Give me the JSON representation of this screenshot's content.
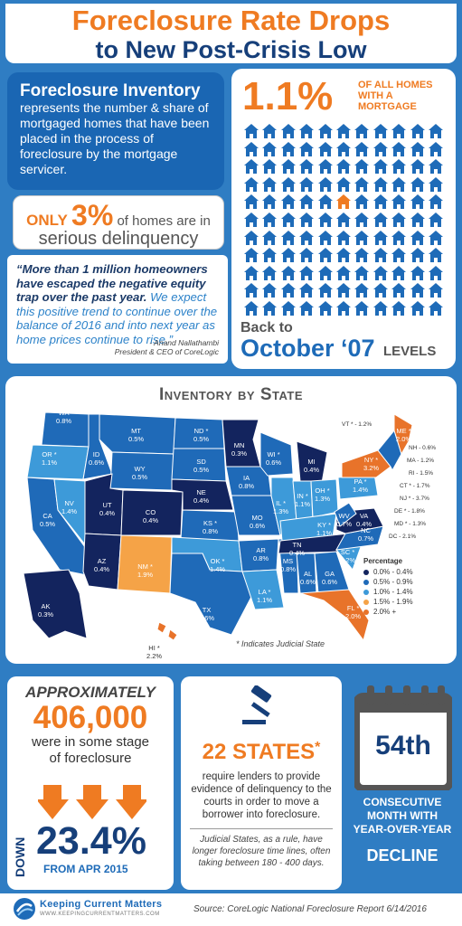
{
  "header": {
    "title_line1": "Foreclosure Rate Drops",
    "title_line2": "to New Post-Crisis Low"
  },
  "inventory": {
    "title": "Foreclosure Inventory",
    "body": "represents the number & share of mortgaged homes that have been placed in the process of foreclosure by the mortgage servicer."
  },
  "delinquency": {
    "only": "ONLY",
    "pct": "3%",
    "line1": "of homes are in",
    "line2": "serious delinquency"
  },
  "quote": {
    "part1": "“More than 1 million homeowners have escaped the negative equity trap over the past year.",
    "part2": "We expect this positive trend to continue over the balance of 2016 and into next year as home prices continue to rise.”",
    "author": "- Anand Nallathambi",
    "role": "President & CEO of CoreLogic"
  },
  "homes": {
    "pct": "1.1%",
    "sub": "OF ALL HOMES WITH A MORTGAGE",
    "back_to": "Back to",
    "date": "October ‘07",
    "levels": "LEVELS",
    "grid_rows": 11,
    "grid_cols": 11,
    "highlight_index": 49
  },
  "map": {
    "title": "Inventory by State",
    "judicial_note": "* Indicates Judicial State",
    "legend_title": "Percentage",
    "legend": [
      {
        "label": "0.0% - 0.4%",
        "color": "#13245e"
      },
      {
        "label": "0.5% - 0.9%",
        "color": "#1f6ab8"
      },
      {
        "label": "1.0% - 1.4%",
        "color": "#3d9ad9"
      },
      {
        "label": "1.5% - 1.9%",
        "color": "#f5a347"
      },
      {
        "label": "2.0% +",
        "color": "#e8732a"
      }
    ],
    "states": [
      {
        "name": "WA",
        "value": "0.8%"
      },
      {
        "name": "OR *",
        "value": "1.1%"
      },
      {
        "name": "CA",
        "value": "0.5%"
      },
      {
        "name": "NV",
        "value": "1.4%"
      },
      {
        "name": "ID",
        "value": "0.6%"
      },
      {
        "name": "MT",
        "value": "0.5%"
      },
      {
        "name": "WY",
        "value": "0.5%"
      },
      {
        "name": "UT",
        "value": "0.4%"
      },
      {
        "name": "AZ",
        "value": "0.4%"
      },
      {
        "name": "CO",
        "value": "0.4%"
      },
      {
        "name": "NM *",
        "value": "1.9%"
      },
      {
        "name": "ND *",
        "value": "0.5%"
      },
      {
        "name": "SD",
        "value": "0.5%"
      },
      {
        "name": "NE",
        "value": "0.4%"
      },
      {
        "name": "KS *",
        "value": "0.8%"
      },
      {
        "name": "OK *",
        "value": "1.4%"
      },
      {
        "name": "TX",
        "value": "0.6%"
      },
      {
        "name": "MN",
        "value": "0.3%"
      },
      {
        "name": "IA",
        "value": "0.8%"
      },
      {
        "name": "MO",
        "value": "0.6%"
      },
      {
        "name": "AR",
        "value": "0.8%"
      },
      {
        "name": "LA *",
        "value": "1.1%"
      },
      {
        "name": "WI *",
        "value": "0.6%"
      },
      {
        "name": "IL *",
        "value": "1.3%"
      },
      {
        "name": "MS",
        "value": "0.8%"
      },
      {
        "name": "MI",
        "value": "0.4%"
      },
      {
        "name": "IN *",
        "value": "1.1%"
      },
      {
        "name": "OH *",
        "value": "1.3%"
      },
      {
        "name": "KY *",
        "value": "1.1%"
      },
      {
        "name": "TN",
        "value": "0.4%"
      },
      {
        "name": "AL",
        "value": "0.6%"
      },
      {
        "name": "GA",
        "value": "0.6%"
      },
      {
        "name": "FL *",
        "value": "2.0%"
      },
      {
        "name": "SC *",
        "value": "1.2%"
      },
      {
        "name": "NC",
        "value": "0.7%"
      },
      {
        "name": "VA",
        "value": "0.4%"
      },
      {
        "name": "WV",
        "value": "0.7%"
      },
      {
        "name": "PA *",
        "value": "1.4%"
      },
      {
        "name": "NY *",
        "value": "3.2%"
      },
      {
        "name": "ME *",
        "value": "2.0%"
      },
      {
        "name": "AK",
        "value": "0.3%"
      },
      {
        "name": "HI *",
        "value": "2.2%"
      }
    ],
    "ne_states": [
      "VT * - 1.2%",
      "NH - 0.6%",
      "MA - 1.2%",
      "RI - 1.5%",
      "CT * - 1.7%",
      "NJ * - 3.7%",
      "DE * - 1.8%",
      "MD * - 1.3%",
      "DC - 2.1%"
    ]
  },
  "foreclosure": {
    "approx": "APPROXIMATELY",
    "number": "406,000",
    "line1": "were in some stage",
    "line2": "of foreclosure",
    "down": "DOWN",
    "pct": "23.4%",
    "from": "FROM APR 2015"
  },
  "judicial": {
    "count": "22 STATES",
    "asterisk": "*",
    "require": "require lenders to provide evidence of delinquency to the courts in order to move a borrower into foreclosure.",
    "note": "Judicial States, as a rule, have longer foreclosure time lines, often taking between 180 - 400 days."
  },
  "month": {
    "num": "54th",
    "line": "CONSECUTIVE MONTH WITH YEAR-OVER-YEAR",
    "decline": "DECLINE"
  },
  "footer": {
    "brand": "Keeping Current Matters",
    "url": "WWW.KEEPINGCURRENTMATTERS.COM",
    "source": "Source: CoreLogic National Foreclosure Report 6/14/2016"
  }
}
